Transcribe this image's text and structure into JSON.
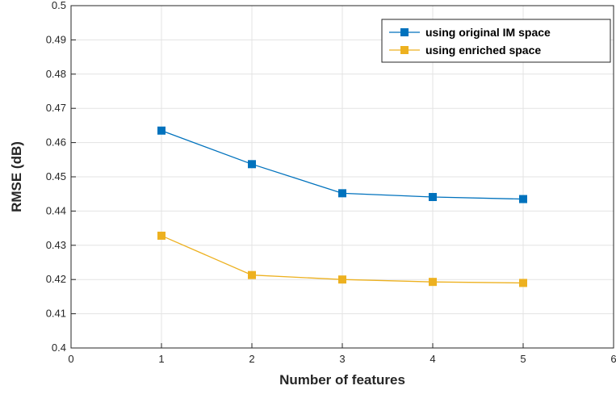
{
  "chart_data": {
    "type": "line",
    "xlabel": "Number of features",
    "ylabel": "RMSE (dB)",
    "xlim": [
      0,
      6
    ],
    "ylim": [
      0.4,
      0.5
    ],
    "xticks": [
      0,
      1,
      2,
      3,
      4,
      5,
      6
    ],
    "xtick_labels": [
      "0",
      "1",
      "2",
      "3",
      "4",
      "5",
      "6"
    ],
    "yticks": [
      0.4,
      0.41,
      0.42,
      0.43,
      0.44,
      0.45,
      0.46,
      0.47,
      0.48,
      0.49,
      0.5
    ],
    "ytick_labels": [
      "0.4",
      "0.41",
      "0.42",
      "0.43",
      "0.44",
      "0.45",
      "0.46",
      "0.47",
      "0.48",
      "0.49",
      "0.5"
    ],
    "grid": true,
    "legend_position": "top-right",
    "x": [
      1,
      2,
      3,
      4,
      5
    ],
    "series": [
      {
        "name": "using original IM space",
        "color": "#0072BD",
        "marker": "square",
        "values": [
          0.4635,
          0.4537,
          0.4452,
          0.4441,
          0.4435
        ]
      },
      {
        "name": "using enriched space",
        "color": "#EDB120",
        "marker": "square",
        "values": [
          0.4328,
          0.4213,
          0.42,
          0.4193,
          0.419
        ]
      }
    ]
  }
}
